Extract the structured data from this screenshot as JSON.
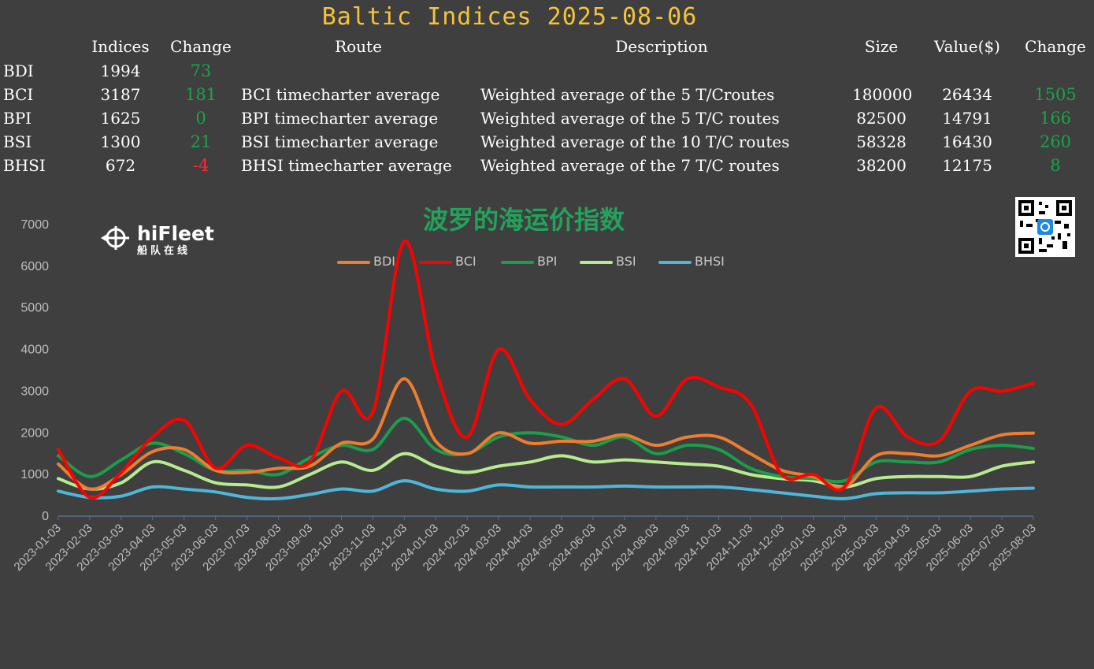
{
  "title": "Baltic Indices 2025-08-06",
  "table": {
    "headers": {
      "indices": "Indices",
      "change": "Change",
      "route": "Route",
      "description": "Description",
      "size": "Size",
      "value": "Value($)",
      "change2": "Change"
    },
    "rows": [
      {
        "name": "BDI",
        "index": "1994",
        "change": "73",
        "route": "",
        "description": "",
        "size": "",
        "value": "",
        "change2": ""
      },
      {
        "name": "BCI",
        "index": "3187",
        "change": "181",
        "route": "BCI timecharter average",
        "description": "Weighted average of the 5 T/Croutes",
        "size": "180000",
        "value": "26434",
        "change2": "1505"
      },
      {
        "name": "BPI",
        "index": "1625",
        "change": "0",
        "route": "BPI timecharter average",
        "description": "Weighted average of the 5 T/C routes",
        "size": "82500",
        "value": "14791",
        "change2": "166"
      },
      {
        "name": "BSI",
        "index": "1300",
        "change": "21",
        "route": "BSI timecharter average",
        "description": "Weighted average of the 10 T/C routes",
        "size": "58328",
        "value": "16430",
        "change2": "260"
      },
      {
        "name": "BHSI",
        "index": "672",
        "change": "-4",
        "route": "BHSI timecharter average",
        "description": "Weighted average of the 7 T/C routes",
        "size": "38200",
        "value": "12175",
        "change2": "8"
      }
    ]
  },
  "logo": {
    "brand": "hiFleet",
    "sub": "船队在线"
  },
  "chart_data": {
    "type": "line",
    "title": "波罗的海运价指数",
    "xlabel": "",
    "ylabel": "",
    "ylim": [
      0,
      7000
    ],
    "yticks": [
      0,
      1000,
      2000,
      3000,
      4000,
      5000,
      6000,
      7000
    ],
    "x": [
      "2023-01-03",
      "2023-02-03",
      "2023-03-03",
      "2023-04-03",
      "2023-05-03",
      "2023-06-03",
      "2023-07-03",
      "2023-08-03",
      "2023-09-03",
      "2023-10-03",
      "2023-11-03",
      "2023-12-03",
      "2024-01-03",
      "2024-02-03",
      "2024-03-03",
      "2024-04-03",
      "2024-05-03",
      "2024-06-03",
      "2024-07-03",
      "2024-08-03",
      "2024-09-03",
      "2024-10-03",
      "2024-11-03",
      "2024-12-03",
      "2025-01-03",
      "2025-02-03",
      "2025-03-03",
      "2025-04-03",
      "2025-05-03",
      "2025-06-03",
      "2025-07-03",
      "2025-08-03"
    ],
    "legend_position": "top",
    "grid": false,
    "series": [
      {
        "name": "BDI",
        "color": "#ed7d31",
        "values": [
          1250,
          650,
          1000,
          1550,
          1600,
          1100,
          1050,
          1150,
          1200,
          1750,
          1850,
          3300,
          1800,
          1500,
          2000,
          1750,
          1800,
          1800,
          1950,
          1700,
          1900,
          1900,
          1500,
          1100,
          950,
          700,
          1450,
          1500,
          1450,
          1700,
          1950,
          1994
        ]
      },
      {
        "name": "BCI",
        "color": "#ff0000",
        "values": [
          1600,
          450,
          1050,
          1900,
          2300,
          1150,
          1700,
          1400,
          1300,
          3000,
          2500,
          6600,
          3500,
          1900,
          4000,
          2800,
          2200,
          2800,
          3300,
          2400,
          3300,
          3100,
          2700,
          1000,
          1000,
          700,
          2600,
          1900,
          1800,
          3000,
          3000,
          3187
        ]
      },
      {
        "name": "BPI",
        "color": "#1b9e4b",
        "values": [
          1450,
          950,
          1350,
          1750,
          1500,
          1100,
          1100,
          1000,
          1400,
          1700,
          1600,
          2350,
          1600,
          1500,
          1900,
          2000,
          1900,
          1700,
          1900,
          1500,
          1700,
          1600,
          1150,
          950,
          900,
          850,
          1300,
          1300,
          1300,
          1600,
          1700,
          1625
        ]
      },
      {
        "name": "BSI",
        "color": "#b7eb8f",
        "values": [
          900,
          650,
          800,
          1300,
          1100,
          800,
          750,
          700,
          1000,
          1300,
          1100,
          1500,
          1200,
          1050,
          1200,
          1300,
          1450,
          1300,
          1350,
          1300,
          1250,
          1200,
          1000,
          900,
          850,
          700,
          900,
          950,
          950,
          950,
          1200,
          1300
        ]
      },
      {
        "name": "BHSI",
        "color": "#4fb6d9",
        "values": [
          600,
          450,
          480,
          700,
          650,
          580,
          450,
          420,
          520,
          650,
          600,
          850,
          650,
          600,
          750,
          700,
          700,
          700,
          720,
          700,
          700,
          700,
          640,
          560,
          480,
          420,
          540,
          560,
          560,
          600,
          650,
          672
        ]
      }
    ]
  },
  "colors": {
    "background": "#3f3f3f",
    "title": "#f5c33b",
    "positive": "#1aa34a",
    "negative": "#ff2b2b",
    "axis_text": "#bdbdbd"
  }
}
